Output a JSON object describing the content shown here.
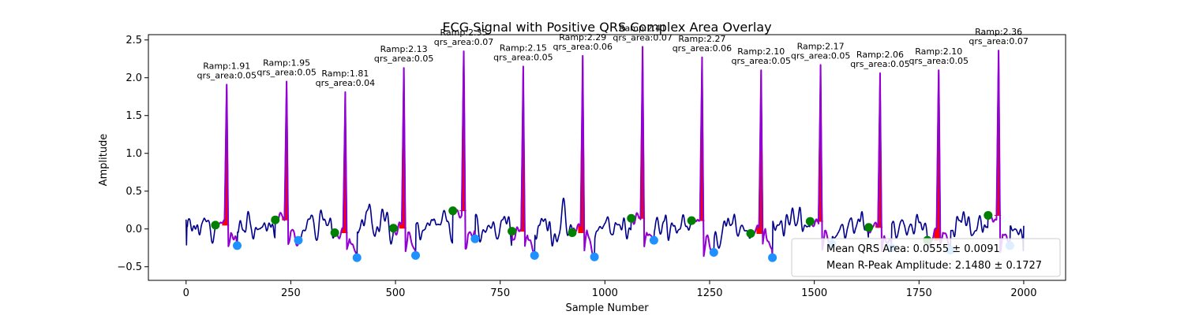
{
  "chart_data": {
    "type": "line",
    "title": "ECG Signal with Positive QRS Complex Area Overlay",
    "xlabel": "Sample Number",
    "ylabel": "Amplitude",
    "xlim": [
      -90,
      2100
    ],
    "ylim": [
      -0.68,
      2.57
    ],
    "x_ticks": [
      0,
      250,
      500,
      750,
      1000,
      1250,
      1500,
      1750,
      2000
    ],
    "y_ticks": [
      -0.5,
      0.0,
      0.5,
      1.0,
      1.5,
      2.0,
      2.5
    ],
    "x_tick_labels": [
      "0",
      "250",
      "500",
      "750",
      "1000",
      "1250",
      "1500",
      "1750",
      "2000"
    ],
    "y_tick_labels": [
      "−0.5",
      "0.0",
      "0.5",
      "1.0",
      "1.5",
      "2.0",
      "2.5"
    ],
    "grid": false,
    "colors": {
      "signal": "#00008b",
      "qrs_segment": "#9400d3",
      "qrs_area": "#ff0000",
      "q_marker": "#008000",
      "s_marker": "#1e90ff",
      "legend_border": "#cccccc"
    },
    "beats": [
      {
        "r_x": 97,
        "r_amp": 1.91,
        "q_x": 70,
        "q_y": 0.05,
        "s_x": 122,
        "s_y": -0.22,
        "label_amp": "Ramp:1.91",
        "label_area": "qrs_area:0.05"
      },
      {
        "r_x": 240,
        "r_amp": 1.95,
        "q_x": 213,
        "q_y": 0.12,
        "s_x": 268,
        "s_y": -0.15,
        "label_amp": "Ramp:1.95",
        "label_area": "qrs_area:0.05"
      },
      {
        "r_x": 380,
        "r_amp": 1.81,
        "q_x": 355,
        "q_y": -0.05,
        "s_x": 408,
        "s_y": -0.38,
        "label_amp": "Ramp:1.81",
        "label_area": "qrs_area:0.04"
      },
      {
        "r_x": 520,
        "r_amp": 2.13,
        "q_x": 495,
        "q_y": 0.01,
        "s_x": 548,
        "s_y": -0.35,
        "label_amp": "Ramp:2.13",
        "label_area": "qrs_area:0.05"
      },
      {
        "r_x": 663,
        "r_amp": 2.35,
        "q_x": 637,
        "q_y": 0.24,
        "s_x": 690,
        "s_y": -0.13,
        "label_amp": "Ramp:2.35",
        "label_area": "qrs_area:0.07"
      },
      {
        "r_x": 805,
        "r_amp": 2.15,
        "q_x": 778,
        "q_y": -0.03,
        "s_x": 832,
        "s_y": -0.35,
        "label_amp": "Ramp:2.15",
        "label_area": "qrs_area:0.05"
      },
      {
        "r_x": 947,
        "r_amp": 2.29,
        "q_x": 922,
        "q_y": -0.05,
        "s_x": 975,
        "s_y": -0.37,
        "label_amp": "Ramp:2.29",
        "label_area": "qrs_area:0.06"
      },
      {
        "r_x": 1090,
        "r_amp": 2.41,
        "q_x": 1063,
        "q_y": 0.14,
        "s_x": 1117,
        "s_y": -0.15,
        "label_amp": "Ramp:2.41",
        "label_area": "qrs_area:0.07"
      },
      {
        "r_x": 1232,
        "r_amp": 2.27,
        "q_x": 1207,
        "q_y": 0.11,
        "s_x": 1260,
        "s_y": -0.31,
        "label_amp": "Ramp:2.27",
        "label_area": "qrs_area:0.06"
      },
      {
        "r_x": 1373,
        "r_amp": 2.1,
        "q_x": 1348,
        "q_y": -0.06,
        "s_x": 1400,
        "s_y": -0.38,
        "label_amp": "Ramp:2.10",
        "label_area": "qrs_area:0.05"
      },
      {
        "r_x": 1515,
        "r_amp": 2.17,
        "q_x": 1490,
        "q_y": 0.1,
        "s_x": 1542,
        "s_y": -0.2,
        "label_amp": "Ramp:2.17",
        "label_area": "qrs_area:0.05"
      },
      {
        "r_x": 1657,
        "r_amp": 2.06,
        "q_x": 1630,
        "q_y": 0.02,
        "s_x": 1684,
        "s_y": -0.25,
        "label_amp": "Ramp:2.06",
        "label_area": "qrs_area:0.05"
      },
      {
        "r_x": 1797,
        "r_amp": 2.1,
        "q_x": 1770,
        "q_y": -0.15,
        "s_x": 1825,
        "s_y": -0.28,
        "label_amp": "Ramp:2.10",
        "label_area": "qrs_area:0.05"
      },
      {
        "r_x": 1940,
        "r_amp": 2.36,
        "q_x": 1915,
        "q_y": 0.18,
        "s_x": 1967,
        "s_y": -0.22,
        "label_amp": "Ramp:2.36",
        "label_area": "qrs_area:0.07"
      }
    ],
    "signal_x_range": [
      0,
      2000
    ],
    "legend": {
      "placement": "lower-right",
      "entries": [
        "Mean QRS Area: 0.0555 ± 0.0091",
        "Mean R-Peak Amplitude: 2.1480 ± 0.1727"
      ]
    }
  }
}
